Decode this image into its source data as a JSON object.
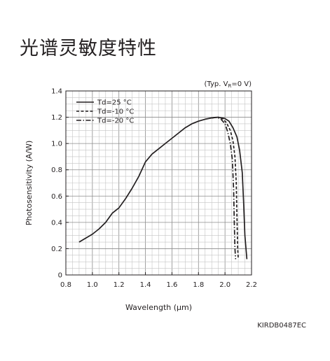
{
  "page": {
    "title": "光谱灵敏度特性",
    "document_code": "KIRDB0487EC"
  },
  "chart_data": {
    "type": "line",
    "title": "",
    "condition_note": "(Typ. VR=0 V)",
    "xlabel": "Wavelength (μm)",
    "ylabel": "Photosensitivity (A/W)",
    "xlim": [
      0.8,
      2.2
    ],
    "ylim": [
      0,
      1.4
    ],
    "x_ticks": [
      0.8,
      1.0,
      1.2,
      1.4,
      1.6,
      1.8,
      2.0,
      2.2
    ],
    "x_tick_labels": [
      "0.8",
      "1.0",
      "1.2",
      "1.4",
      "1.6",
      "1.8",
      "2.0",
      "2.2"
    ],
    "y_ticks": [
      0,
      0.2,
      0.4,
      0.6,
      0.8,
      1.0,
      1.2,
      1.4
    ],
    "y_tick_labels": [
      "0",
      "0.2",
      "0.4",
      "0.6",
      "0.8",
      "1.0",
      "1.2",
      "1.4"
    ],
    "grid": true,
    "grid_minor_step": 0.05,
    "legend_position": "top-left",
    "series": [
      {
        "name": "Td=25 °C",
        "line_style": "solid",
        "color": "#231f20",
        "points": [
          [
            0.9,
            0.25
          ],
          [
            0.95,
            0.28
          ],
          [
            1.0,
            0.31
          ],
          [
            1.05,
            0.35
          ],
          [
            1.1,
            0.4
          ],
          [
            1.15,
            0.47
          ],
          [
            1.2,
            0.51
          ],
          [
            1.25,
            0.58
          ],
          [
            1.3,
            0.66
          ],
          [
            1.35,
            0.75
          ],
          [
            1.4,
            0.86
          ],
          [
            1.45,
            0.92
          ],
          [
            1.5,
            0.96
          ],
          [
            1.55,
            1.0
          ],
          [
            1.6,
            1.04
          ],
          [
            1.65,
            1.08
          ],
          [
            1.7,
            1.12
          ],
          [
            1.75,
            1.15
          ],
          [
            1.8,
            1.17
          ],
          [
            1.85,
            1.185
          ],
          [
            1.9,
            1.195
          ],
          [
            1.95,
            1.2
          ],
          [
            2.0,
            1.19
          ],
          [
            2.03,
            1.17
          ],
          [
            2.06,
            1.12
          ],
          [
            2.09,
            1.05
          ],
          [
            2.11,
            0.95
          ],
          [
            2.13,
            0.78
          ],
          [
            2.14,
            0.56
          ],
          [
            2.15,
            0.3
          ],
          [
            2.165,
            0.12
          ]
        ]
      },
      {
        "name": "Td=-10 °C",
        "line_style": "dashed",
        "color": "#231f20",
        "points": [
          [
            1.9,
            1.195
          ],
          [
            1.95,
            1.2
          ],
          [
            1.98,
            1.19
          ],
          [
            2.01,
            1.16
          ],
          [
            2.04,
            1.1
          ],
          [
            2.06,
            1.02
          ],
          [
            2.075,
            0.9
          ],
          [
            2.085,
            0.7
          ],
          [
            2.09,
            0.45
          ],
          [
            2.095,
            0.22
          ],
          [
            2.1,
            0.12
          ]
        ]
      },
      {
        "name": "Td=-20 °C",
        "line_style": "dash-dot",
        "color": "#231f20",
        "points": [
          [
            1.9,
            1.195
          ],
          [
            1.94,
            1.2
          ],
          [
            1.97,
            1.185
          ],
          [
            2.0,
            1.15
          ],
          [
            2.02,
            1.09
          ],
          [
            2.04,
            1.0
          ],
          [
            2.055,
            0.88
          ],
          [
            2.065,
            0.65
          ],
          [
            2.07,
            0.4
          ],
          [
            2.075,
            0.2
          ],
          [
            2.08,
            0.12
          ]
        ]
      }
    ]
  }
}
